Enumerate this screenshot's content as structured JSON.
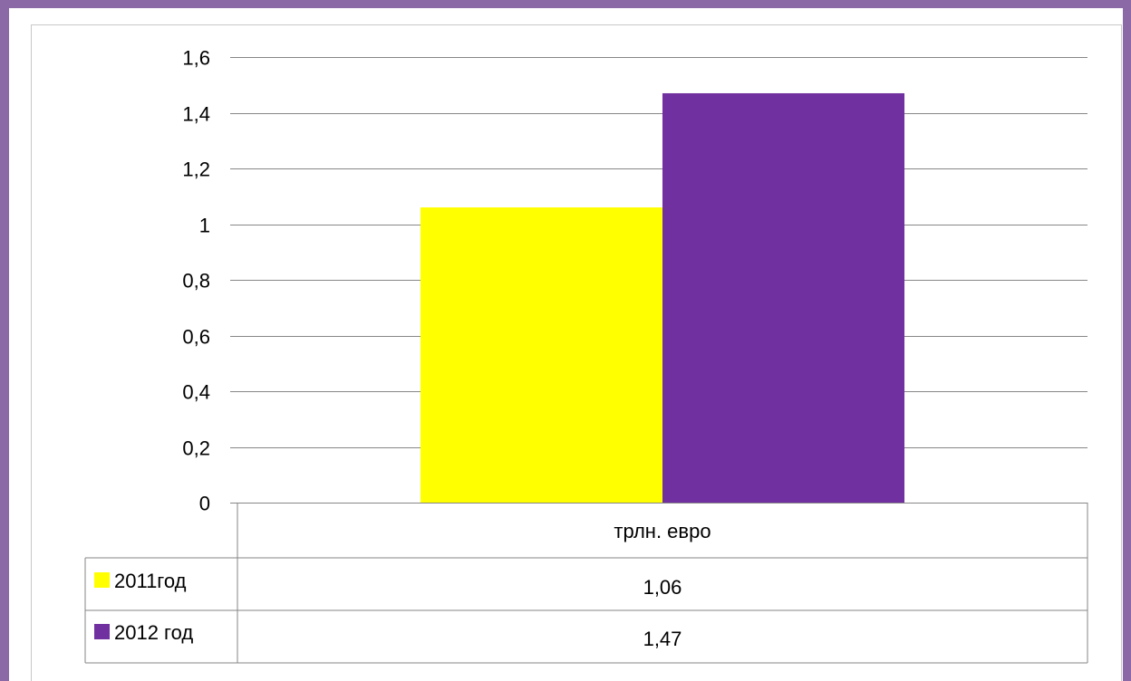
{
  "chart_data": {
    "type": "bar",
    "categories": [
      "трлн. евро"
    ],
    "series": [
      {
        "name": "2011год",
        "values": [
          1.06
        ],
        "value_label": "1,06",
        "color": "#ffff00"
      },
      {
        "name": "2012 год",
        "values": [
          1.47
        ],
        "value_label": "1,47",
        "color": "#7030a0"
      }
    ],
    "ylim": [
      0,
      1.6
    ],
    "yticks": [
      0,
      0.2,
      0.4,
      0.6,
      0.8,
      1,
      1.2,
      1.4,
      1.6
    ],
    "ytick_labels": [
      "0",
      "0,2",
      "0,4",
      "0,6",
      "0,8",
      "1",
      "1,2",
      "1,4",
      "1,6"
    ],
    "grid": true,
    "legend": "data-table",
    "title": "",
    "xlabel": "",
    "ylabel": ""
  },
  "colors": {
    "frame": "#8a69a6",
    "gridline": "#868686",
    "table_border": "#868686"
  }
}
